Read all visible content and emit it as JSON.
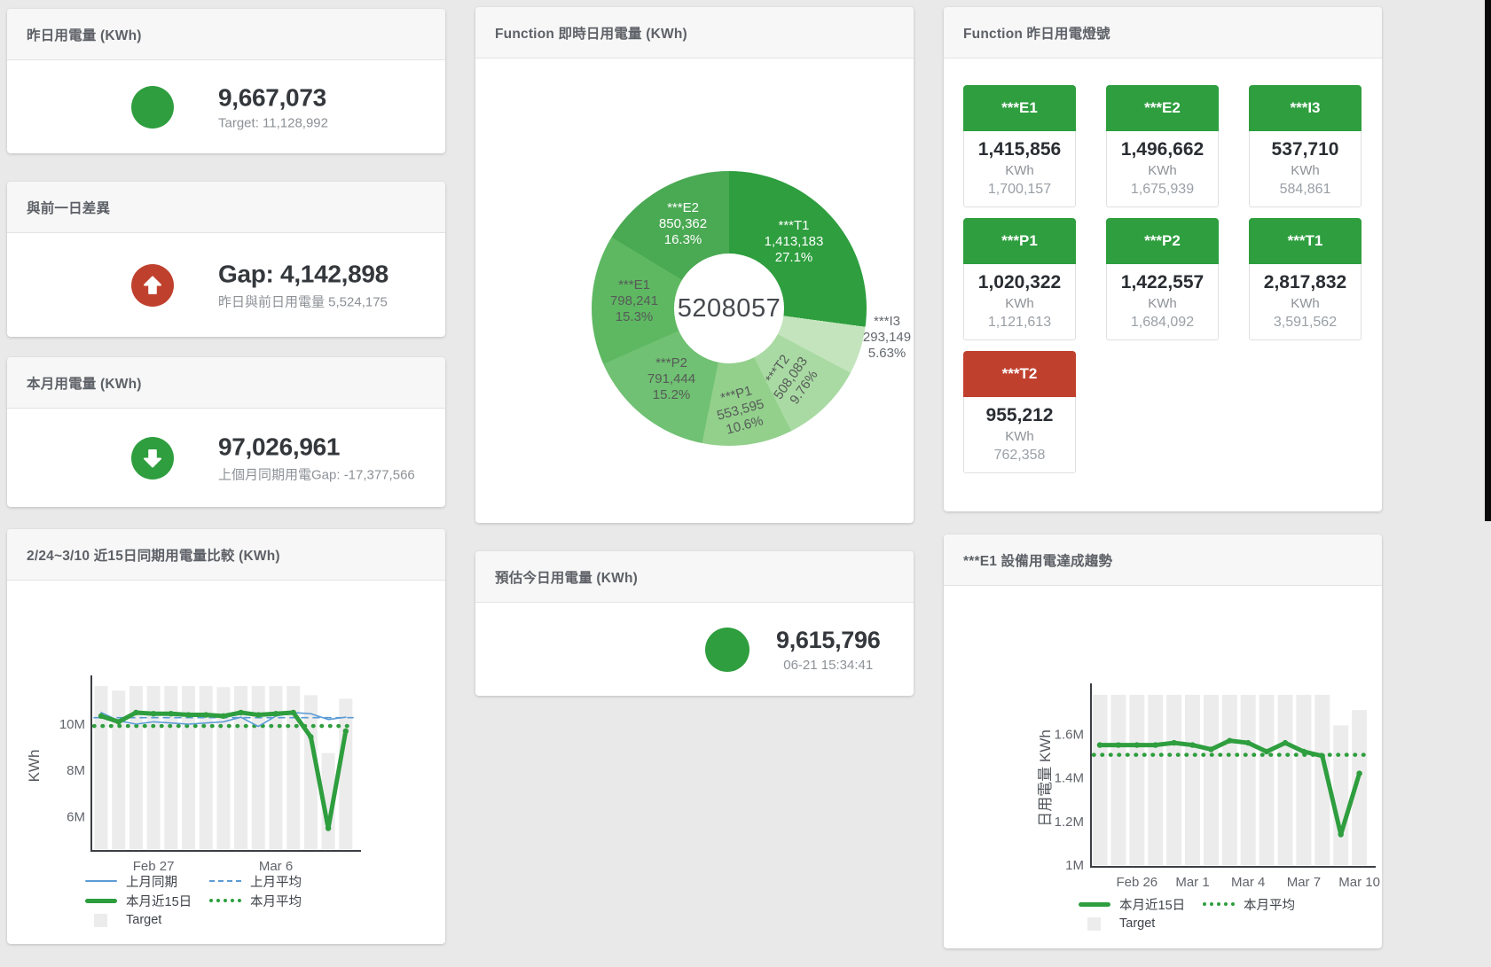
{
  "colors": {
    "green": "#2e9e3e",
    "red": "#c0402e",
    "blue": "#5b9bd5",
    "bar_gray": "#ececec"
  },
  "cards": {
    "yesterday": {
      "title": "昨日用電量 (KWh)",
      "value": "9,667,073",
      "subtitle": "Target: 11,128,992"
    },
    "diff": {
      "title": "與前一日差異",
      "value": "Gap: 4,142,898",
      "subtitle": "昨日與前日用電量 5,524,175"
    },
    "month": {
      "title": "本月用電量 (KWh)",
      "value": "97,026,961",
      "subtitle": "上個月同期用電Gap: -17,377,566"
    },
    "compare": {
      "title": "2/24~3/10 近15日同期用電量比較 (KWh)"
    },
    "realtime": {
      "title": "Function 即時日用電量 (KWh)"
    },
    "estimate": {
      "title": "預估今日用電量 (KWh)",
      "value": "9,615,796",
      "subtitle": "06-21 15:34:41"
    },
    "lights": {
      "title": "Function 昨日用電燈號",
      "tiles": [
        {
          "name": "***E1",
          "value": "1,415,856",
          "unit": "KWh",
          "target": "1,700,157",
          "status": "green"
        },
        {
          "name": "***E2",
          "value": "1,496,662",
          "unit": "KWh",
          "target": "1,675,939",
          "status": "green"
        },
        {
          "name": "***I3",
          "value": "537,710",
          "unit": "KWh",
          "target": "584,861",
          "status": "green"
        },
        {
          "name": "***P1",
          "value": "1,020,322",
          "unit": "KWh",
          "target": "1,121,613",
          "status": "green"
        },
        {
          "name": "***P2",
          "value": "1,422,557",
          "unit": "KWh",
          "target": "1,684,092",
          "status": "green"
        },
        {
          "name": "***T1",
          "value": "2,817,832",
          "unit": "KWh",
          "target": "3,591,562",
          "status": "green"
        },
        {
          "name": "***T2",
          "value": "955,212",
          "unit": "KWh",
          "target": "762,358",
          "status": "red"
        }
      ]
    },
    "trend": {
      "title": "***E1 設備用電達成趨勢"
    }
  },
  "chart_data": [
    {
      "id": "realtime-donut",
      "type": "pie",
      "title": "Function 即時日用電量 (KWh)",
      "center_total": "5208057",
      "slices": [
        {
          "name": "***T1",
          "value": "1,413,183",
          "pct": "27.1%",
          "pct_num": 27.1,
          "color": "#2e9e3e",
          "label_color": "#ffffff"
        },
        {
          "name": "***I3",
          "value": "293,149",
          "pct": "5.63%",
          "pct_num": 5.63,
          "color": "#c3e4bc",
          "label_color": "#63676d"
        },
        {
          "name": "***T2",
          "value": "508,083",
          "pct": "9.76%",
          "pct_num": 9.76,
          "color": "#a9daa3",
          "label_color": "#565b57"
        },
        {
          "name": "***P1",
          "value": "553,595",
          "pct": "10.6%",
          "pct_num": 10.6,
          "color": "#92d08c",
          "label_color": "#565b57"
        },
        {
          "name": "***P2",
          "value": "791,444",
          "pct": "15.2%",
          "pct_num": 15.2,
          "color": "#70c173",
          "label_color": "#565b57"
        },
        {
          "name": "***E1",
          "value": "798,241",
          "pct": "15.3%",
          "pct_num": 15.3,
          "color": "#5eb862",
          "label_color": "#565b57"
        },
        {
          "name": "***E2",
          "value": "850,362",
          "pct": "16.3%",
          "pct_num": 16.3,
          "color": "#4aa953",
          "label_color": "#ffffff"
        }
      ]
    },
    {
      "id": "compare-chart",
      "type": "line-bar",
      "title": "2/24~3/10 近15日同期用電量比較 (KWh)",
      "ylabel": "KWh",
      "unit": "M KWh",
      "n_points": 15,
      "ylim": [
        4.6,
        11.8
      ],
      "y_ticks": [
        {
          "v": 6,
          "label": "6M"
        },
        {
          "v": 8,
          "label": "8M"
        },
        {
          "v": 10,
          "label": "10M"
        }
      ],
      "x_ticks": [
        {
          "i": 3,
          "label": "Feb 27"
        },
        {
          "i": 10,
          "label": "Mar 6"
        }
      ],
      "series": [
        {
          "name": "Target",
          "kind": "bar",
          "color": "#ececec",
          "values": [
            11.65,
            11.45,
            11.65,
            11.65,
            11.65,
            11.65,
            11.65,
            11.6,
            11.65,
            11.65,
            11.65,
            11.65,
            11.25,
            8.75,
            11.1
          ]
        },
        {
          "name": "上月同期",
          "kind": "line",
          "dash": "solid",
          "color": "#5b9bd5",
          "width": 1.6,
          "values": [
            10.5,
            10.15,
            10.0,
            10.1,
            10.05,
            10.0,
            10.05,
            10.1,
            10.3,
            9.9,
            10.35,
            10.5,
            10.45,
            10.2,
            10.3
          ]
        },
        {
          "name": "上月平均",
          "kind": "avg",
          "dash": "dashed",
          "color": "#5b9bd5",
          "width": 1.6,
          "value": 10.28
        },
        {
          "name": "本月近15日",
          "kind": "line",
          "dash": "solid",
          "color": "#2e9e3e",
          "width": 5,
          "markers": true,
          "values": [
            10.35,
            10.1,
            10.5,
            10.45,
            10.45,
            10.4,
            10.4,
            10.35,
            10.5,
            10.4,
            10.45,
            10.5,
            9.45,
            5.5,
            9.7
          ]
        },
        {
          "name": "本月平均",
          "kind": "avg",
          "dash": "dotted",
          "color": "#2e9e3e",
          "width": 4.5,
          "value": 9.92
        }
      ]
    },
    {
      "id": "trend-chart",
      "type": "line-bar",
      "title": "***E1 設備用電達成趨勢",
      "ylabel": "日用電量 KWh",
      "unit": "M KWh",
      "n_points": 15,
      "ylim": [
        1.0,
        1.8
      ],
      "y_ticks": [
        {
          "v": 1,
          "label": "1M"
        },
        {
          "v": 1.2,
          "label": "1.2M"
        },
        {
          "v": 1.4,
          "label": "1.4M"
        },
        {
          "v": 1.6,
          "label": "1.6M"
        }
      ],
      "x_ticks": [
        {
          "i": 2,
          "label": "Feb 26"
        },
        {
          "i": 5,
          "label": "Mar 1"
        },
        {
          "i": 8,
          "label": "Mar 4"
        },
        {
          "i": 11,
          "label": "Mar 7"
        },
        {
          "i": 14,
          "label": "Mar 10"
        }
      ],
      "series": [
        {
          "name": "Target",
          "kind": "bar",
          "color": "#ececec",
          "values": [
            1.78,
            1.78,
            1.78,
            1.78,
            1.78,
            1.78,
            1.78,
            1.78,
            1.78,
            1.78,
            1.78,
            1.78,
            1.78,
            1.64,
            1.71
          ]
        },
        {
          "name": "本月近15日",
          "kind": "line",
          "dash": "solid",
          "color": "#2e9e3e",
          "width": 5,
          "markers": true,
          "values": [
            1.55,
            1.55,
            1.55,
            1.55,
            1.56,
            1.55,
            1.53,
            1.57,
            1.56,
            1.52,
            1.56,
            1.52,
            1.5,
            1.14,
            1.42
          ]
        },
        {
          "name": "本月平均",
          "kind": "avg",
          "dash": "dotted",
          "color": "#2e9e3e",
          "width": 4.5,
          "value": 1.505
        }
      ]
    }
  ]
}
